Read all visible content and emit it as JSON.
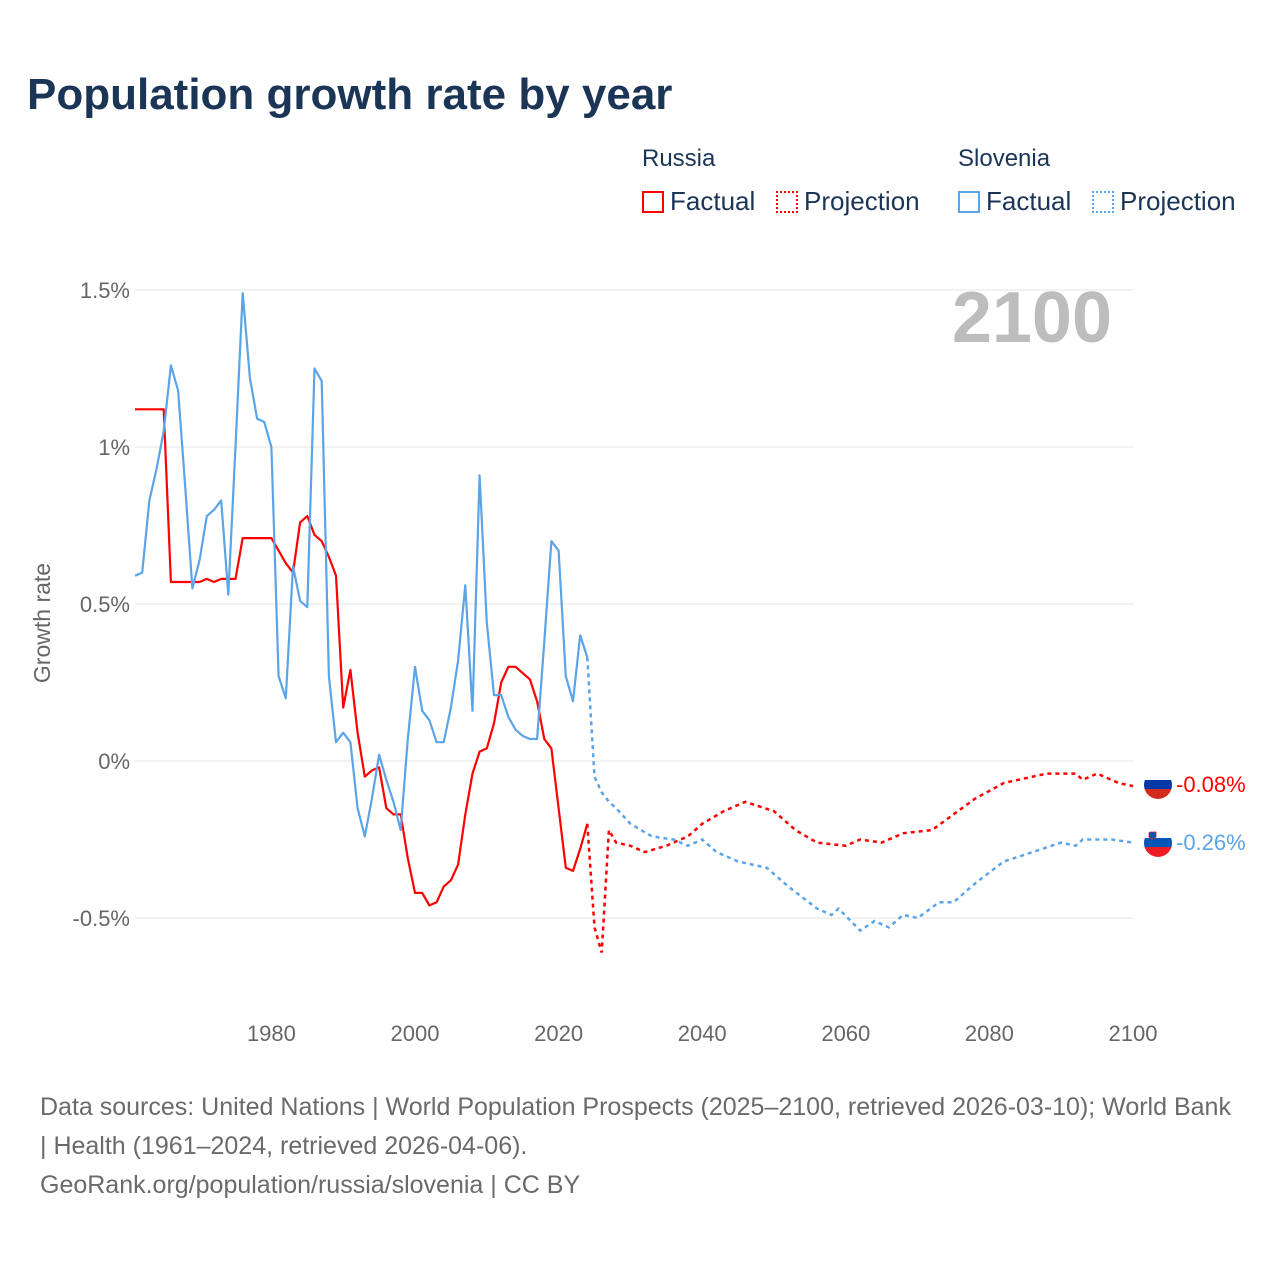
{
  "title": "Population growth rate by year",
  "legend": {
    "groups": [
      {
        "name": "Russia",
        "color": "#ff0000",
        "factual": "Factual",
        "projection": "Projection"
      },
      {
        "name": "Slovenia",
        "color": "#5ba4e8",
        "factual": "Factual",
        "projection": "Projection"
      }
    ]
  },
  "footer": {
    "sources": "Data sources: United Nations | World Population Prospects (2025–2100, retrieved 2026-03-10); World Bank | Health (1961–2024, retrieved 2026-04-06).",
    "credit": "GeoRank.org/population/russia/slovenia | CC BY"
  },
  "chart_data": {
    "type": "line",
    "title": "Population growth rate by year",
    "ylabel": "Growth rate",
    "xlabel": "",
    "current_year_label": "2100",
    "xlim": [
      1961,
      2100
    ],
    "ylim": [
      -0.75,
      1.55
    ],
    "xticks": [
      1980,
      2000,
      2020,
      2040,
      2060,
      2080,
      2100
    ],
    "yticks": [
      {
        "v": -0.5,
        "label": "-0.5%"
      },
      {
        "v": 0,
        "label": "0%"
      },
      {
        "v": 0.5,
        "label": "0.5%"
      },
      {
        "v": 1,
        "label": "1%"
      },
      {
        "v": 1.5,
        "label": "1.5%"
      }
    ],
    "grid": true,
    "series": [
      {
        "name": "Russia",
        "color": "#ff0000",
        "end_label": "-0.08%",
        "factual": {
          "x": [
            1961,
            1962,
            1963,
            1964,
            1965,
            1966,
            1967,
            1968,
            1969,
            1970,
            1971,
            1972,
            1973,
            1974,
            1975,
            1976,
            1977,
            1978,
            1979,
            1980,
            1981,
            1982,
            1983,
            1984,
            1985,
            1986,
            1987,
            1988,
            1989,
            1990,
            1991,
            1992,
            1993,
            1994,
            1995,
            1996,
            1997,
            1998,
            1999,
            2000,
            2001,
            2002,
            2003,
            2004,
            2005,
            2006,
            2007,
            2008,
            2009,
            2010,
            2011,
            2012,
            2013,
            2014,
            2015,
            2016,
            2017,
            2018,
            2019,
            2020,
            2021,
            2022,
            2023,
            2024
          ],
          "y": [
            1.12,
            1.12,
            1.12,
            1.12,
            1.12,
            0.57,
            0.57,
            0.57,
            0.57,
            0.57,
            0.58,
            0.57,
            0.58,
            0.58,
            0.58,
            0.71,
            0.71,
            0.71,
            0.71,
            0.71,
            0.67,
            0.63,
            0.6,
            0.76,
            0.78,
            0.72,
            0.7,
            0.65,
            0.59,
            0.17,
            0.29,
            0.09,
            -0.05,
            -0.03,
            -0.02,
            -0.15,
            -0.17,
            -0.17,
            -0.31,
            -0.42,
            -0.42,
            -0.46,
            -0.45,
            -0.4,
            -0.38,
            -0.33,
            -0.17,
            -0.04,
            0.03,
            0.04,
            0.12,
            0.25,
            0.3,
            0.3,
            0.28,
            0.26,
            0.19,
            0.07,
            0.04,
            -0.15,
            -0.34,
            -0.35,
            -0.28,
            -0.2
          ]
        },
        "projection": {
          "x": [
            2024,
            2025,
            2026,
            2027,
            2028,
            2030,
            2032,
            2035,
            2038,
            2040,
            2043,
            2046,
            2050,
            2053,
            2056,
            2060,
            2062,
            2065,
            2068,
            2072,
            2075,
            2078,
            2082,
            2086,
            2088,
            2092,
            2093,
            2095,
            2098,
            2100
          ],
          "y": [
            -0.2,
            -0.53,
            -0.61,
            -0.22,
            -0.26,
            -0.27,
            -0.29,
            -0.27,
            -0.24,
            -0.2,
            -0.16,
            -0.13,
            -0.16,
            -0.22,
            -0.26,
            -0.27,
            -0.25,
            -0.26,
            -0.23,
            -0.22,
            -0.17,
            -0.12,
            -0.07,
            -0.05,
            -0.04,
            -0.04,
            -0.06,
            -0.04,
            -0.07,
            -0.08
          ]
        }
      },
      {
        "name": "Slovenia",
        "color": "#5ba4e8",
        "end_label": "-0.26%",
        "factual": {
          "x": [
            1961,
            1962,
            1963,
            1964,
            1965,
            1966,
            1967,
            1968,
            1969,
            1970,
            1971,
            1972,
            1973,
            1974,
            1975,
            1976,
            1977,
            1978,
            1979,
            1980,
            1981,
            1982,
            1983,
            1984,
            1985,
            1986,
            1987,
            1988,
            1989,
            1990,
            1991,
            1992,
            1993,
            1994,
            1995,
            1996,
            1997,
            1998,
            1999,
            2000,
            2001,
            2002,
            2003,
            2004,
            2005,
            2006,
            2007,
            2008,
            2009,
            2010,
            2011,
            2012,
            2013,
            2014,
            2015,
            2016,
            2017,
            2018,
            2019,
            2020,
            2021,
            2022,
            2023,
            2024
          ],
          "y": [
            0.59,
            0.6,
            0.83,
            0.93,
            1.05,
            1.26,
            1.18,
            0.87,
            0.55,
            0.64,
            0.78,
            0.8,
            0.83,
            0.53,
            1.0,
            1.49,
            1.22,
            1.09,
            1.08,
            1.0,
            0.27,
            0.2,
            0.62,
            0.51,
            0.49,
            1.25,
            1.21,
            0.27,
            0.06,
            0.09,
            0.06,
            -0.15,
            -0.24,
            -0.12,
            0.02,
            -0.06,
            -0.13,
            -0.22,
            0.07,
            0.3,
            0.16,
            0.13,
            0.06,
            0.06,
            0.17,
            0.32,
            0.56,
            0.16,
            0.91,
            0.44,
            0.21,
            0.21,
            0.14,
            0.1,
            0.08,
            0.07,
            0.07,
            0.38,
            0.7,
            0.67,
            0.27,
            0.19,
            0.4,
            0.33
          ]
        },
        "projection": {
          "x": [
            2024,
            2025,
            2026,
            2027,
            2028,
            2030,
            2033,
            2036,
            2038,
            2040,
            2042,
            2045,
            2049,
            2052,
            2056,
            2058,
            2059,
            2062,
            2064,
            2066,
            2068,
            2070,
            2073,
            2075,
            2078,
            2082,
            2086,
            2090,
            2092,
            2093,
            2097,
            2100
          ],
          "y": [
            0.33,
            -0.05,
            -0.1,
            -0.13,
            -0.15,
            -0.2,
            -0.24,
            -0.25,
            -0.27,
            -0.25,
            -0.29,
            -0.32,
            -0.34,
            -0.4,
            -0.47,
            -0.49,
            -0.47,
            -0.54,
            -0.51,
            -0.53,
            -0.49,
            -0.5,
            -0.45,
            -0.45,
            -0.39,
            -0.32,
            -0.29,
            -0.26,
            -0.27,
            -0.25,
            -0.25,
            -0.26
          ]
        }
      }
    ]
  }
}
